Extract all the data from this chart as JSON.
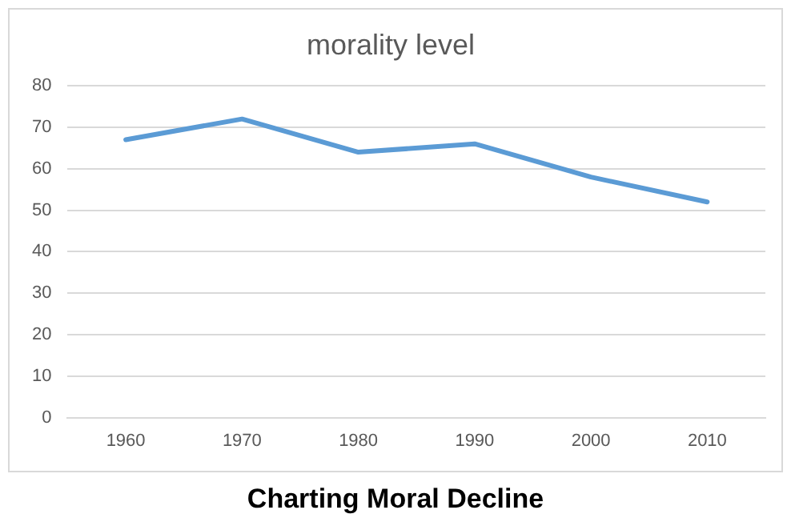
{
  "chart_data": {
    "type": "line",
    "title": "morality level",
    "categories": [
      "1960",
      "1970",
      "1980",
      "1990",
      "2000",
      "2010"
    ],
    "series": [
      {
        "color": "#5b9bd5",
        "values": [
          67,
          72,
          64,
          66,
          58,
          52
        ]
      }
    ],
    "ylim": [
      0,
      80
    ],
    "yticks": [
      0,
      10,
      20,
      30,
      40,
      50,
      60,
      70,
      80
    ],
    "grid": "y",
    "legend": false,
    "marker": "none",
    "line_style": "solid",
    "annotations": [
      "Charting Moral Decline"
    ]
  }
}
